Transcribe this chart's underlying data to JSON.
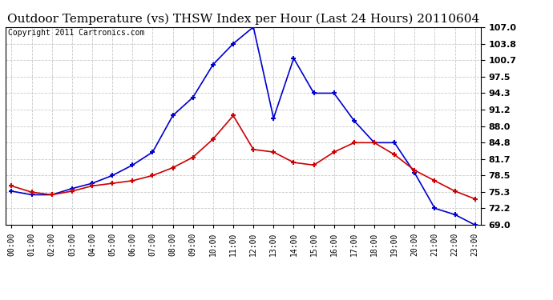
{
  "title": "Outdoor Temperature (vs) THSW Index per Hour (Last 24 Hours) 20110604",
  "copyright": "Copyright 2011 Cartronics.com",
  "hours": [
    "00:00",
    "01:00",
    "02:00",
    "03:00",
    "04:00",
    "05:00",
    "06:00",
    "07:00",
    "08:00",
    "09:00",
    "10:00",
    "11:00",
    "12:00",
    "13:00",
    "14:00",
    "15:00",
    "16:00",
    "17:00",
    "18:00",
    "19:00",
    "20:00",
    "21:00",
    "22:00",
    "23:00"
  ],
  "temp": [
    76.5,
    75.3,
    74.8,
    75.5,
    76.5,
    77.0,
    77.5,
    78.5,
    80.0,
    82.0,
    85.5,
    90.0,
    83.5,
    83.0,
    81.0,
    80.5,
    83.0,
    84.8,
    84.8,
    82.5,
    79.5,
    77.5,
    75.5,
    74.0
  ],
  "thsw": [
    75.5,
    74.8,
    74.8,
    76.0,
    77.0,
    78.5,
    80.5,
    83.0,
    90.0,
    93.5,
    99.8,
    103.8,
    107.0,
    89.5,
    101.0,
    94.3,
    94.3,
    89.0,
    84.8,
    84.8,
    79.0,
    72.2,
    71.0,
    69.0
  ],
  "ylim_min": 69.0,
  "ylim_max": 107.0,
  "yticks": [
    69.0,
    72.2,
    75.3,
    78.5,
    81.7,
    84.8,
    88.0,
    91.2,
    94.3,
    97.5,
    100.7,
    103.8,
    107.0
  ],
  "temp_color": "#cc0000",
  "thsw_color": "#0000cc",
  "bg_color": "#ffffff",
  "grid_color": "#bbbbbb",
  "title_fontsize": 11,
  "copyright_fontsize": 7
}
